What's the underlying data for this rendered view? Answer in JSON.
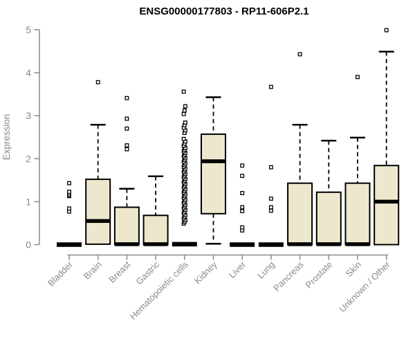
{
  "chart_data": {
    "type": "boxplot",
    "title": "ENSG00000177803 - RP11-606P2.1",
    "ylabel": "Expression",
    "xlabel": "",
    "ylim": [
      0,
      5
    ],
    "yticks": [
      0,
      1,
      2,
      3,
      4,
      5
    ],
    "grid": false,
    "legend": "none",
    "categories": [
      "Bladder",
      "Brain",
      "Breast",
      "Gastric",
      "Hematopoietic cells",
      "Kidney",
      "Liver",
      "Lung",
      "Pancreas",
      "Prostate",
      "Skin",
      "Unknown / Other"
    ],
    "series": [
      {
        "label": "Bladder",
        "whisker_low": 0,
        "q1": 0,
        "median": 0,
        "q3": 0,
        "whisker_high": 0,
        "outliers": [
          0.77,
          0.84,
          1.13,
          1.15,
          1.19,
          1.23,
          1.43
        ]
      },
      {
        "label": "Brain",
        "whisker_low": 0.01,
        "q1": 0.01,
        "median": 0.55,
        "q3": 1.52,
        "whisker_high": 2.79,
        "outliers": [
          3.78
        ]
      },
      {
        "label": "Breast",
        "whisker_low": 0,
        "q1": 0,
        "median": 0.01,
        "q3": 0.87,
        "whisker_high": 1.3,
        "outliers": [
          2.22,
          2.31,
          2.7,
          2.93,
          3.41
        ]
      },
      {
        "label": "Gastric",
        "whisker_low": 0,
        "q1": 0,
        "median": 0.01,
        "q3": 0.68,
        "whisker_high": 1.59,
        "outliers": []
      },
      {
        "label": "Hematopoietic cells",
        "whisker_low": 0,
        "q1": 0,
        "median": 0.01,
        "q3": 0.01,
        "whisker_high": 0.01,
        "outliers": [
          0.49,
          0.53,
          0.57,
          0.61,
          0.65,
          0.69,
          0.73,
          0.77,
          0.81,
          0.85,
          0.89,
          0.93,
          0.97,
          1.01,
          1.05,
          1.09,
          1.13,
          1.17,
          1.21,
          1.25,
          1.29,
          1.33,
          1.37,
          1.41,
          1.45,
          1.49,
          1.53,
          1.57,
          1.61,
          1.65,
          1.69,
          1.73,
          1.77,
          1.81,
          1.85,
          1.89,
          1.93,
          1.97,
          2.01,
          2.05,
          2.09,
          2.13,
          2.17,
          2.21,
          2.25,
          2.3,
          2.35,
          2.4,
          2.46,
          2.6,
          2.66,
          2.72,
          2.78,
          2.84,
          3.04,
          3.12,
          3.22,
          3.56
        ]
      },
      {
        "label": "Kidney",
        "whisker_low": 0.02,
        "q1": 0.72,
        "median": 1.94,
        "q3": 2.57,
        "whisker_high": 3.43,
        "outliers": []
      },
      {
        "label": "Liver",
        "whisker_low": 0,
        "q1": 0,
        "median": 0,
        "q3": 0,
        "whisker_high": 0,
        "outliers": [
          0.33,
          0.4,
          0.78,
          0.87,
          1.2,
          1.6,
          1.84
        ]
      },
      {
        "label": "Lung",
        "whisker_low": 0,
        "q1": 0,
        "median": 0,
        "q3": 0,
        "whisker_high": 0,
        "outliers": [
          0.79,
          0.87,
          1.07,
          1.8,
          3.67
        ]
      },
      {
        "label": "Pancreas",
        "whisker_low": 0,
        "q1": 0,
        "median": 0.01,
        "q3": 1.43,
        "whisker_high": 2.79,
        "outliers": [
          4.43
        ]
      },
      {
        "label": "Prostate",
        "whisker_low": 0,
        "q1": 0,
        "median": 0.01,
        "q3": 1.22,
        "whisker_high": 2.42,
        "outliers": []
      },
      {
        "label": "Skin",
        "whisker_low": 0,
        "q1": 0,
        "median": 0.01,
        "q3": 1.43,
        "whisker_high": 2.49,
        "outliers": [
          3.9
        ]
      },
      {
        "label": "Unknown / Other",
        "whisker_low": 0,
        "q1": 0,
        "median": 1.0,
        "q3": 1.84,
        "whisker_high": 4.49,
        "outliers": [
          4.99
        ]
      }
    ],
    "colors": {
      "box_fill": "#EDE8CD",
      "box_stroke": "#000000",
      "median": "#000000",
      "whisker": "#000000",
      "outlier_stroke": "#000000",
      "outlier_fill": "#ffffff",
      "axis": "#8a8a8a",
      "tick_label": "#8a8a8a",
      "title": "#000000"
    }
  }
}
